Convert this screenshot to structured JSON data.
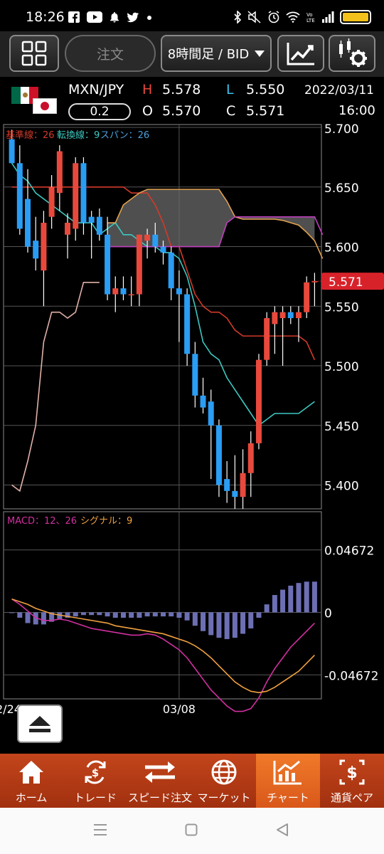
{
  "status_bar": {
    "time": "18:26",
    "battery_color": "#f4c21a"
  },
  "toolbar": {
    "menu_icon": "grid-icon",
    "order_label": "注文",
    "period_label": "8時間足 / BID",
    "chart_type_icon": "line-chart-icon",
    "settings_icon": "chart-settings-icon"
  },
  "pair_header": {
    "pair": "MXN/JPY",
    "spread": "0.2",
    "high_label": "H",
    "high": "5.578",
    "low_label": "L",
    "low": "5.550",
    "open_label": "O",
    "open": "5.570",
    "close_label": "C",
    "close": "5.571",
    "date": "2022/03/11",
    "time": "16:00"
  },
  "main_chart": {
    "legend": [
      {
        "text": "基準線：26",
        "color": "#d23a2a"
      },
      {
        "text": "転換線：9",
        "color": "#3cc8c0"
      },
      {
        "text": "スパン：26",
        "color": "#4aa0e0"
      }
    ],
    "price_ticks": [
      "5.700",
      "5.650",
      "5.600",
      "5.550",
      "5.500",
      "5.450",
      "5.400"
    ],
    "current_price": "5.571",
    "current_price_color": "#d8222a"
  },
  "macd_chart": {
    "legend": [
      {
        "text": "MACD：12、26",
        "color": "#d030a0"
      },
      {
        "text": "シグナル：9",
        "color": "#f0a040"
      }
    ],
    "ticks": [
      "0.04672",
      "0",
      "-0.04672"
    ]
  },
  "x_axis": {
    "labels": [
      "2/24",
      "03/08"
    ]
  },
  "eject_icon": "eject-icon",
  "bottom_nav": {
    "items": [
      {
        "label": "ホーム",
        "icon": "home-icon"
      },
      {
        "label": "トレード",
        "icon": "trade-icon"
      },
      {
        "label": "スピード注文",
        "icon": "speed-order-icon"
      },
      {
        "label": "マーケット",
        "icon": "market-globe-icon"
      },
      {
        "label": "チャート",
        "icon": "chart-icon"
      },
      {
        "label": "通貨ペア",
        "icon": "currency-pair-icon"
      }
    ],
    "active_index": 4,
    "bar_color": "#b53a16",
    "active_color": "#f07a2a"
  },
  "chart_data": [
    {
      "type": "candlestick",
      "title": "MXN/JPY 8時間足 / BID",
      "yticks": [
        5.7,
        5.65,
        5.6,
        5.55,
        5.5,
        5.45,
        5.4
      ],
      "ylim": [
        5.38,
        5.703
      ],
      "up_color": "#e8493c",
      "down_color": "#2a9df4",
      "candles": [
        {
          "o": 5.69,
          "h": 5.698,
          "l": 5.67,
          "c": 5.67
        },
        {
          "o": 5.67,
          "h": 5.685,
          "l": 5.61,
          "c": 5.615
        },
        {
          "o": 5.64,
          "h": 5.665,
          "l": 5.595,
          "c": 5.6
        },
        {
          "o": 5.605,
          "h": 5.625,
          "l": 5.58,
          "c": 5.59
        },
        {
          "o": 5.58,
          "h": 5.63,
          "l": 5.55,
          "c": 5.62
        },
        {
          "o": 5.625,
          "h": 5.66,
          "l": 5.615,
          "c": 5.65
        },
        {
          "o": 5.645,
          "h": 5.685,
          "l": 5.63,
          "c": 5.68
        },
        {
          "o": 5.61,
          "h": 5.628,
          "l": 5.59,
          "c": 5.62
        },
        {
          "o": 5.615,
          "h": 5.675,
          "l": 5.605,
          "c": 5.67
        },
        {
          "o": 5.67,
          "h": 5.675,
          "l": 5.61,
          "c": 5.62
        },
        {
          "o": 5.625,
          "h": 5.63,
          "l": 5.59,
          "c": 5.62
        },
        {
          "o": 5.625,
          "h": 5.632,
          "l": 5.605,
          "c": 5.61
        },
        {
          "o": 5.61,
          "h": 5.625,
          "l": 5.555,
          "c": 5.56
        },
        {
          "o": 5.56,
          "h": 5.575,
          "l": 5.545,
          "c": 5.565
        },
        {
          "o": 5.565,
          "h": 5.575,
          "l": 5.555,
          "c": 5.56
        },
        {
          "o": 5.56,
          "h": 5.575,
          "l": 5.55,
          "c": 5.56
        },
        {
          "o": 5.56,
          "h": 5.61,
          "l": 5.55,
          "c": 5.61
        },
        {
          "o": 5.605,
          "h": 5.615,
          "l": 5.59,
          "c": 5.61
        },
        {
          "o": 5.61,
          "h": 5.62,
          "l": 5.595,
          "c": 5.6
        },
        {
          "o": 5.6,
          "h": 5.605,
          "l": 5.585,
          "c": 5.595
        },
        {
          "o": 5.595,
          "h": 5.6,
          "l": 5.555,
          "c": 5.565
        },
        {
          "o": 5.565,
          "h": 5.58,
          "l": 5.52,
          "c": 5.56
        },
        {
          "o": 5.56,
          "h": 5.565,
          "l": 5.5,
          "c": 5.51
        },
        {
          "o": 5.51,
          "h": 5.52,
          "l": 5.465,
          "c": 5.475
        },
        {
          "o": 5.475,
          "h": 5.49,
          "l": 5.46,
          "c": 5.465
        },
        {
          "o": 5.47,
          "h": 5.48,
          "l": 5.405,
          "c": 5.45
        },
        {
          "o": 5.45,
          "h": 5.455,
          "l": 5.39,
          "c": 5.4
        },
        {
          "o": 5.405,
          "h": 5.42,
          "l": 5.385,
          "c": 5.395
        },
        {
          "o": 5.395,
          "h": 5.425,
          "l": 5.38,
          "c": 5.39
        },
        {
          "o": 5.39,
          "h": 5.43,
          "l": 5.38,
          "c": 5.41
        },
        {
          "o": 5.41,
          "h": 5.445,
          "l": 5.39,
          "c": 5.435
        },
        {
          "o": 5.435,
          "h": 5.51,
          "l": 5.43,
          "c": 5.505
        },
        {
          "o": 5.505,
          "h": 5.545,
          "l": 5.5,
          "c": 5.54
        },
        {
          "o": 5.535,
          "h": 5.55,
          "l": 5.51,
          "c": 5.545
        },
        {
          "o": 5.54,
          "h": 5.55,
          "l": 5.5,
          "c": 5.545
        },
        {
          "o": 5.545,
          "h": 5.55,
          "l": 5.535,
          "c": 5.54
        },
        {
          "o": 5.54,
          "h": 5.55,
          "l": 5.52,
          "c": 5.545
        },
        {
          "o": 5.545,
          "h": 5.575,
          "l": 5.54,
          "c": 5.57
        },
        {
          "o": 5.57,
          "h": 5.578,
          "l": 5.55,
          "c": 5.571
        }
      ],
      "series": [
        {
          "name": "基準線",
          "color": "#d23a2a",
          "values": [
            5.65,
            5.65,
            5.65,
            5.65,
            5.65,
            5.65,
            5.65,
            5.65,
            5.65,
            5.65,
            5.65,
            5.65,
            5.65,
            5.65,
            5.65,
            5.645,
            5.645,
            5.645,
            5.635,
            5.62,
            5.6,
            5.6,
            5.58,
            5.56,
            5.55,
            5.545,
            5.545,
            5.54,
            5.53,
            5.525,
            5.525,
            5.525,
            5.525,
            5.525,
            5.525,
            5.525,
            5.525,
            5.52,
            5.505
          ]
        },
        {
          "name": "転換線",
          "color": "#3cc8c0",
          "values": [
            5.67,
            5.66,
            5.655,
            5.645,
            5.64,
            5.635,
            5.63,
            5.625,
            5.62,
            5.62,
            5.62,
            5.61,
            5.615,
            5.62,
            5.61,
            5.61,
            5.605,
            5.6,
            5.6,
            5.595,
            5.595,
            5.59,
            5.575,
            5.55,
            5.52,
            5.51,
            5.505,
            5.49,
            5.48,
            5.47,
            5.46,
            5.45,
            5.455,
            5.46,
            5.46,
            5.46,
            5.46,
            5.465,
            5.47
          ]
        },
        {
          "name": "先行スパン1",
          "color": "#e0a050",
          "values": [
            null,
            null,
            null,
            null,
            null,
            null,
            null,
            null,
            null,
            null,
            null,
            null,
            5.62,
            5.62,
            5.635,
            5.64,
            5.645,
            5.648,
            5.648,
            5.648,
            5.648,
            5.648,
            5.648,
            5.648,
            5.648,
            5.648,
            5.648,
            5.638,
            5.625,
            5.623,
            5.623,
            5.623,
            5.623,
            5.623,
            5.622,
            5.62,
            5.618,
            5.612,
            5.605,
            5.59
          ]
        },
        {
          "name": "先行スパン2",
          "color": "#c040c0",
          "values": [
            null,
            null,
            null,
            null,
            null,
            null,
            null,
            null,
            null,
            null,
            null,
            null,
            5.6,
            5.6,
            5.6,
            5.6,
            5.6,
            5.6,
            5.6,
            5.6,
            5.6,
            5.6,
            5.6,
            5.6,
            5.6,
            5.6,
            5.6,
            5.62,
            5.625,
            5.625,
            5.625,
            5.625,
            5.625,
            5.625,
            5.625,
            5.625,
            5.625,
            5.625,
            5.625,
            5.61
          ]
        },
        {
          "name": "遅行スパン",
          "color": "#e0b0a8",
          "values": [
            5.4,
            5.395,
            5.42,
            5.45,
            5.52,
            5.545,
            5.545,
            5.54,
            5.545,
            5.57,
            5.57,
            5.57
          ]
        }
      ]
    },
    {
      "type": "bar",
      "title": "MACD",
      "yticks": [
        0.04672,
        0,
        -0.04672
      ],
      "histogram_color": "#6d6fb4",
      "histogram": [
        0.0,
        -0.004,
        -0.008,
        -0.009,
        -0.009,
        -0.007,
        -0.005,
        -0.004,
        -0.003,
        -0.002,
        -0.002,
        -0.002,
        -0.003,
        -0.004,
        -0.004,
        -0.004,
        -0.004,
        -0.003,
        -0.003,
        -0.003,
        -0.003,
        -0.004,
        -0.006,
        -0.01,
        -0.014,
        -0.017,
        -0.019,
        -0.02,
        -0.019,
        -0.016,
        -0.012,
        -0.004,
        0.006,
        0.013,
        0.017,
        0.02,
        0.022,
        0.023,
        0.023
      ],
      "series": [
        {
          "name": "MACD",
          "color": "#d030a0",
          "values": [
            0.01,
            0.006,
            0.001,
            -0.004,
            -0.006,
            -0.006,
            -0.005,
            -0.006,
            -0.008,
            -0.01,
            -0.012,
            -0.013,
            -0.014,
            -0.015,
            -0.016,
            -0.017,
            -0.017,
            -0.016,
            -0.017,
            -0.02,
            -0.024,
            -0.028,
            -0.034,
            -0.042,
            -0.05,
            -0.058,
            -0.064,
            -0.07,
            -0.074,
            -0.074,
            -0.072,
            -0.064,
            -0.052,
            -0.042,
            -0.034,
            -0.026,
            -0.02,
            -0.014,
            -0.008
          ]
        },
        {
          "name": "シグナル",
          "color": "#f0a040",
          "values": [
            0.01,
            0.008,
            0.006,
            0.003,
            0.001,
            -0.001,
            -0.002,
            -0.003,
            -0.004,
            -0.005,
            -0.006,
            -0.007,
            -0.008,
            -0.01,
            -0.011,
            -0.012,
            -0.013,
            -0.014,
            -0.015,
            -0.016,
            -0.018,
            -0.02,
            -0.022,
            -0.025,
            -0.029,
            -0.034,
            -0.04,
            -0.046,
            -0.052,
            -0.056,
            -0.059,
            -0.06,
            -0.059,
            -0.056,
            -0.052,
            -0.048,
            -0.044,
            -0.038,
            -0.032
          ]
        }
      ]
    }
  ]
}
